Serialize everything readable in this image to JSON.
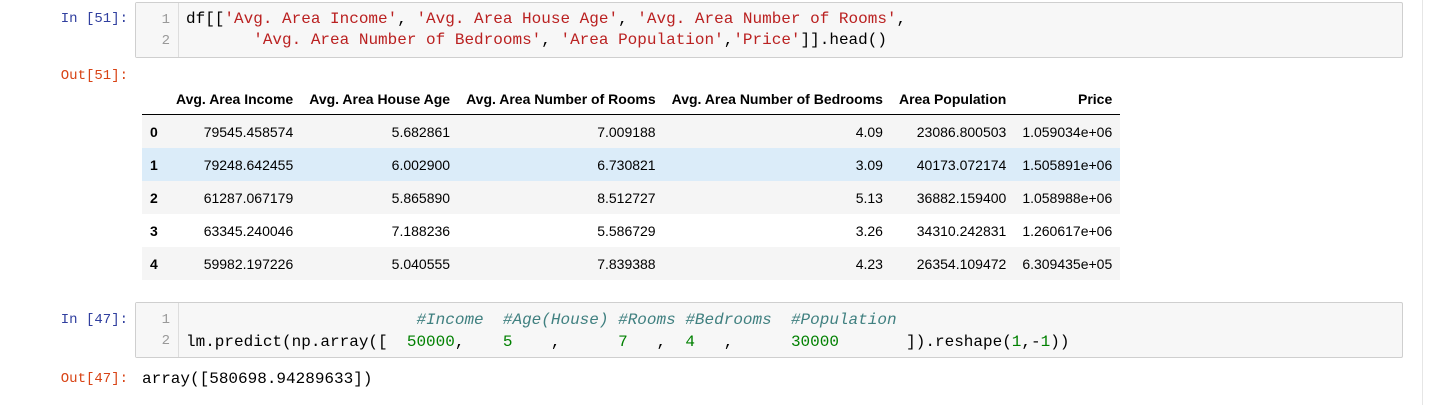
{
  "cell51": {
    "in_prompt": "In [51]:",
    "out_prompt": "Out[51]:",
    "line_numbers": [
      "1",
      "2"
    ],
    "line1": {
      "p0": "df[[",
      "s1": "'Avg. Area Income'",
      "p1": ", ",
      "s2": "'Avg. Area House Age'",
      "p2": ", ",
      "s3": "'Avg. Area Number of Rooms'",
      "p3": ","
    },
    "line2": {
      "p0": "       ",
      "s1": "'Avg. Area Number of Bedrooms'",
      "p1": ", ",
      "s2": "'Area Population'",
      "p2": ",",
      "s3": "'Price'",
      "p3": "]].head()"
    },
    "table": {
      "columns": [
        "",
        "Avg. Area Income",
        "Avg. Area House Age",
        "Avg. Area Number of Rooms",
        "Avg. Area Number of Bedrooms",
        "Area Population",
        "Price"
      ],
      "rows": [
        [
          "0",
          "79545.458574",
          "5.682861",
          "7.009188",
          "4.09",
          "23086.800503",
          "1.059034e+06"
        ],
        [
          "1",
          "79248.642455",
          "6.002900",
          "6.730821",
          "3.09",
          "40173.072174",
          "1.505891e+06"
        ],
        [
          "2",
          "61287.067179",
          "5.865890",
          "8.512727",
          "5.13",
          "36882.159400",
          "1.058988e+06"
        ],
        [
          "3",
          "63345.240046",
          "7.188236",
          "5.586729",
          "3.26",
          "34310.242831",
          "1.260617e+06"
        ],
        [
          "4",
          "59982.197226",
          "5.040555",
          "7.839388",
          "4.23",
          "26354.109472",
          "6.309435e+05"
        ]
      ],
      "highlighted_row": 1
    }
  },
  "cell47": {
    "in_prompt": "In [47]:",
    "out_prompt": "Out[47]:",
    "line_numbers": [
      "1",
      "2"
    ],
    "line1": {
      "pad": "                        ",
      "c1": "#Income",
      "g1": "  ",
      "c2": "#Age(House)",
      "g2": " ",
      "c3": "#Rooms",
      "g3": " ",
      "c4": "#Bedrooms",
      "g4": "  ",
      "c5": "#Population"
    },
    "line2": {
      "p0": "lm.predict(np.array([  ",
      "n1": "50000",
      "p1": ",    ",
      "n2": "5",
      "p2": "    ,      ",
      "n3": "7",
      "p3": "   ,  ",
      "n4": "4",
      "p4": "   ,      ",
      "n5": "30000",
      "p5": "       ]).reshape(",
      "n6": "1",
      "p6": ",",
      "o7": "-",
      "n7": "1",
      "p7": "))"
    },
    "output": "array([580698.94289633])"
  },
  "colors": {
    "in_prompt": "#303f9f",
    "out_prompt": "#d84315",
    "string": "#ba2121",
    "comment": "#408080",
    "number": "#008000",
    "row_highlight": "#dbecf9"
  }
}
